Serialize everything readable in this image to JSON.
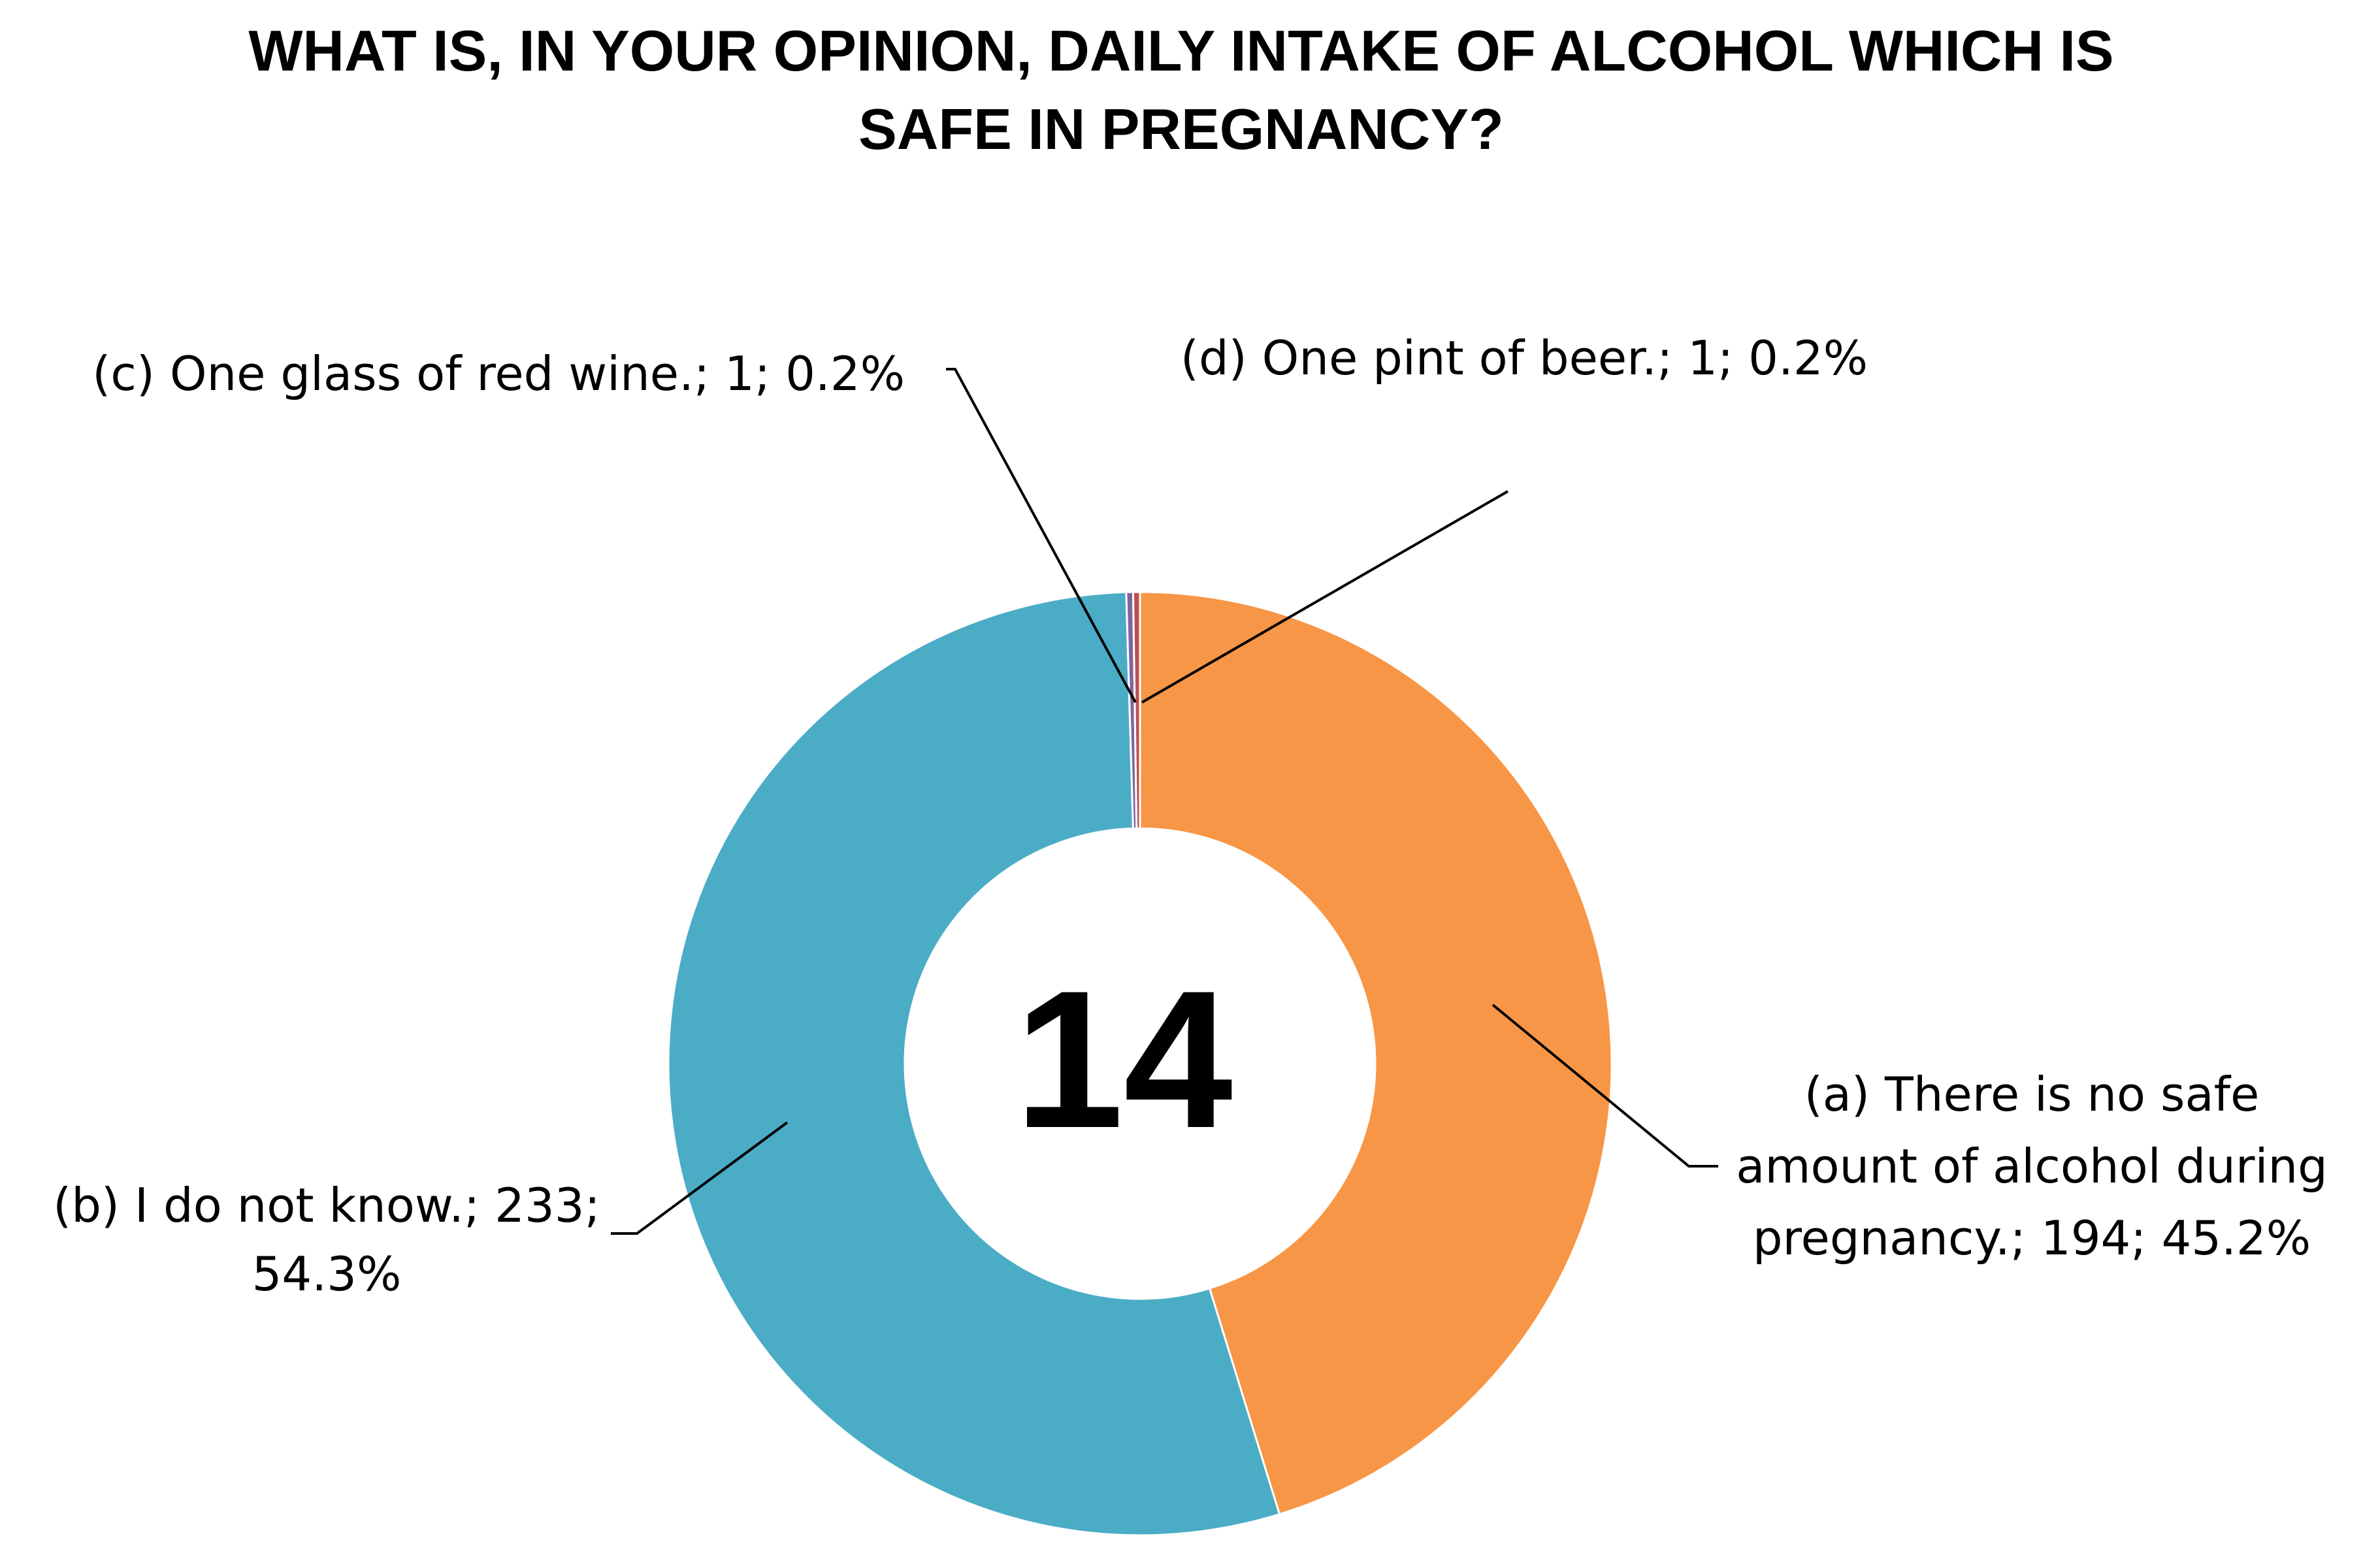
{
  "chart_data": {
    "type": "pie",
    "variant": "donut",
    "title_lines": [
      "WHAT IS, IN YOUR OPINION, DAILY INTAKE OF ALCOHOL WHICH IS",
      "SAFE IN PREGNANCY?"
    ],
    "center_label": "14",
    "slices": [
      {
        "name": "(a) There is no safe amount of alcohol during pregnancy.",
        "value": 194,
        "percent": 45.2,
        "color": "#F79646",
        "label_lines": [
          "(a) There is no safe",
          "amount of alcohol during",
          "pregnancy.; 194; 45.2%"
        ]
      },
      {
        "name": "(b) I do not know.",
        "value": 233,
        "percent": 54.3,
        "color": "#4BACC6",
        "label_lines": [
          "(b) I do not know.; 233;",
          "54.3%"
        ]
      },
      {
        "name": "(c) One glass of red wine.",
        "value": 1,
        "percent": 0.2,
        "color": "#8064A2",
        "label_lines": [
          "(c) One glass of red wine.; 1; 0.2%"
        ]
      },
      {
        "name": "(d) One pint of beer.",
        "value": 1,
        "percent": 0.2,
        "color": "#C0504D",
        "label_lines": [
          "(d) One pint of beer.; 1; 0.2%"
        ]
      }
    ],
    "start_angle_deg": 0,
    "direction": "clockwise"
  }
}
